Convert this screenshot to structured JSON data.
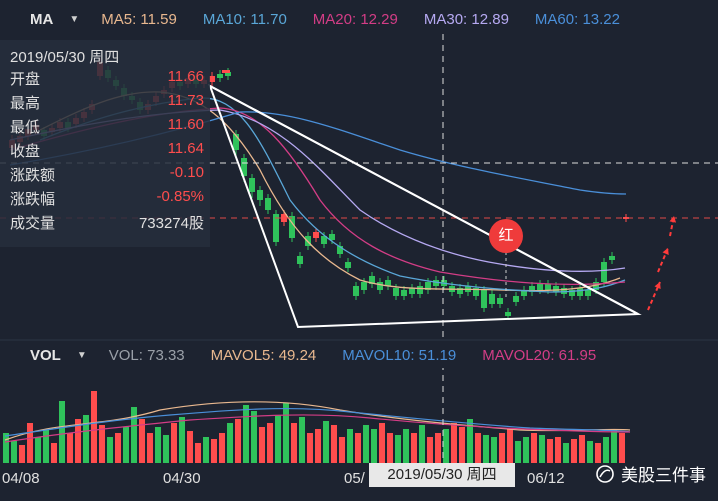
{
  "ma_header": {
    "selector": "MA",
    "items": [
      {
        "label": "MA5: 11.59",
        "color": "#e9b88f"
      },
      {
        "label": "MA10: 11.70",
        "color": "#5aa7d8"
      },
      {
        "label": "MA20: 12.29",
        "color": "#d33d86"
      },
      {
        "label": "MA30: 12.89",
        "color": "#b6a9f2"
      },
      {
        "label": "MA60: 13.22",
        "color": "#4a8fd9"
      }
    ]
  },
  "vol_header": {
    "selector": "VOL",
    "items": [
      {
        "label": "VOL: 73.33",
        "color": "#9aa0a8"
      },
      {
        "label": "MAVOL5: 49.24",
        "color": "#e9b88f"
      },
      {
        "label": "MAVOL10: 51.19",
        "color": "#4a8fd9"
      },
      {
        "label": "MAVOL20: 61.95",
        "color": "#d33d86"
      }
    ]
  },
  "ohlc": {
    "date": "2019/05/30 周四",
    "rows": [
      {
        "label": "开盘",
        "value": "11.66",
        "color": "#ff4d4d"
      },
      {
        "label": "最高",
        "value": "11.73",
        "color": "#ff4d4d"
      },
      {
        "label": "最低",
        "value": "11.60",
        "color": "#ff4d4d"
      },
      {
        "label": "收盘",
        "value": "11.64",
        "color": "#ff4d4d"
      },
      {
        "label": "涨跌额",
        "value": "-0.10",
        "color": "#ff4d4d"
      },
      {
        "label": "涨跌幅",
        "value": "-0.85%",
        "color": "#ff4d4d"
      },
      {
        "label": "成交量",
        "value": "733274股",
        "color": "#e0e0e0"
      }
    ]
  },
  "x_axis": {
    "labels": [
      "04/08",
      "04/30",
      "05/",
      "06/12"
    ]
  },
  "tooltip_date": "2019/05/30 周四",
  "badge": "红",
  "watermark": "美股三件事",
  "colors": {
    "up": "#ff4d4d",
    "down": "#2fc25b",
    "bg": "#1d2330"
  }
}
